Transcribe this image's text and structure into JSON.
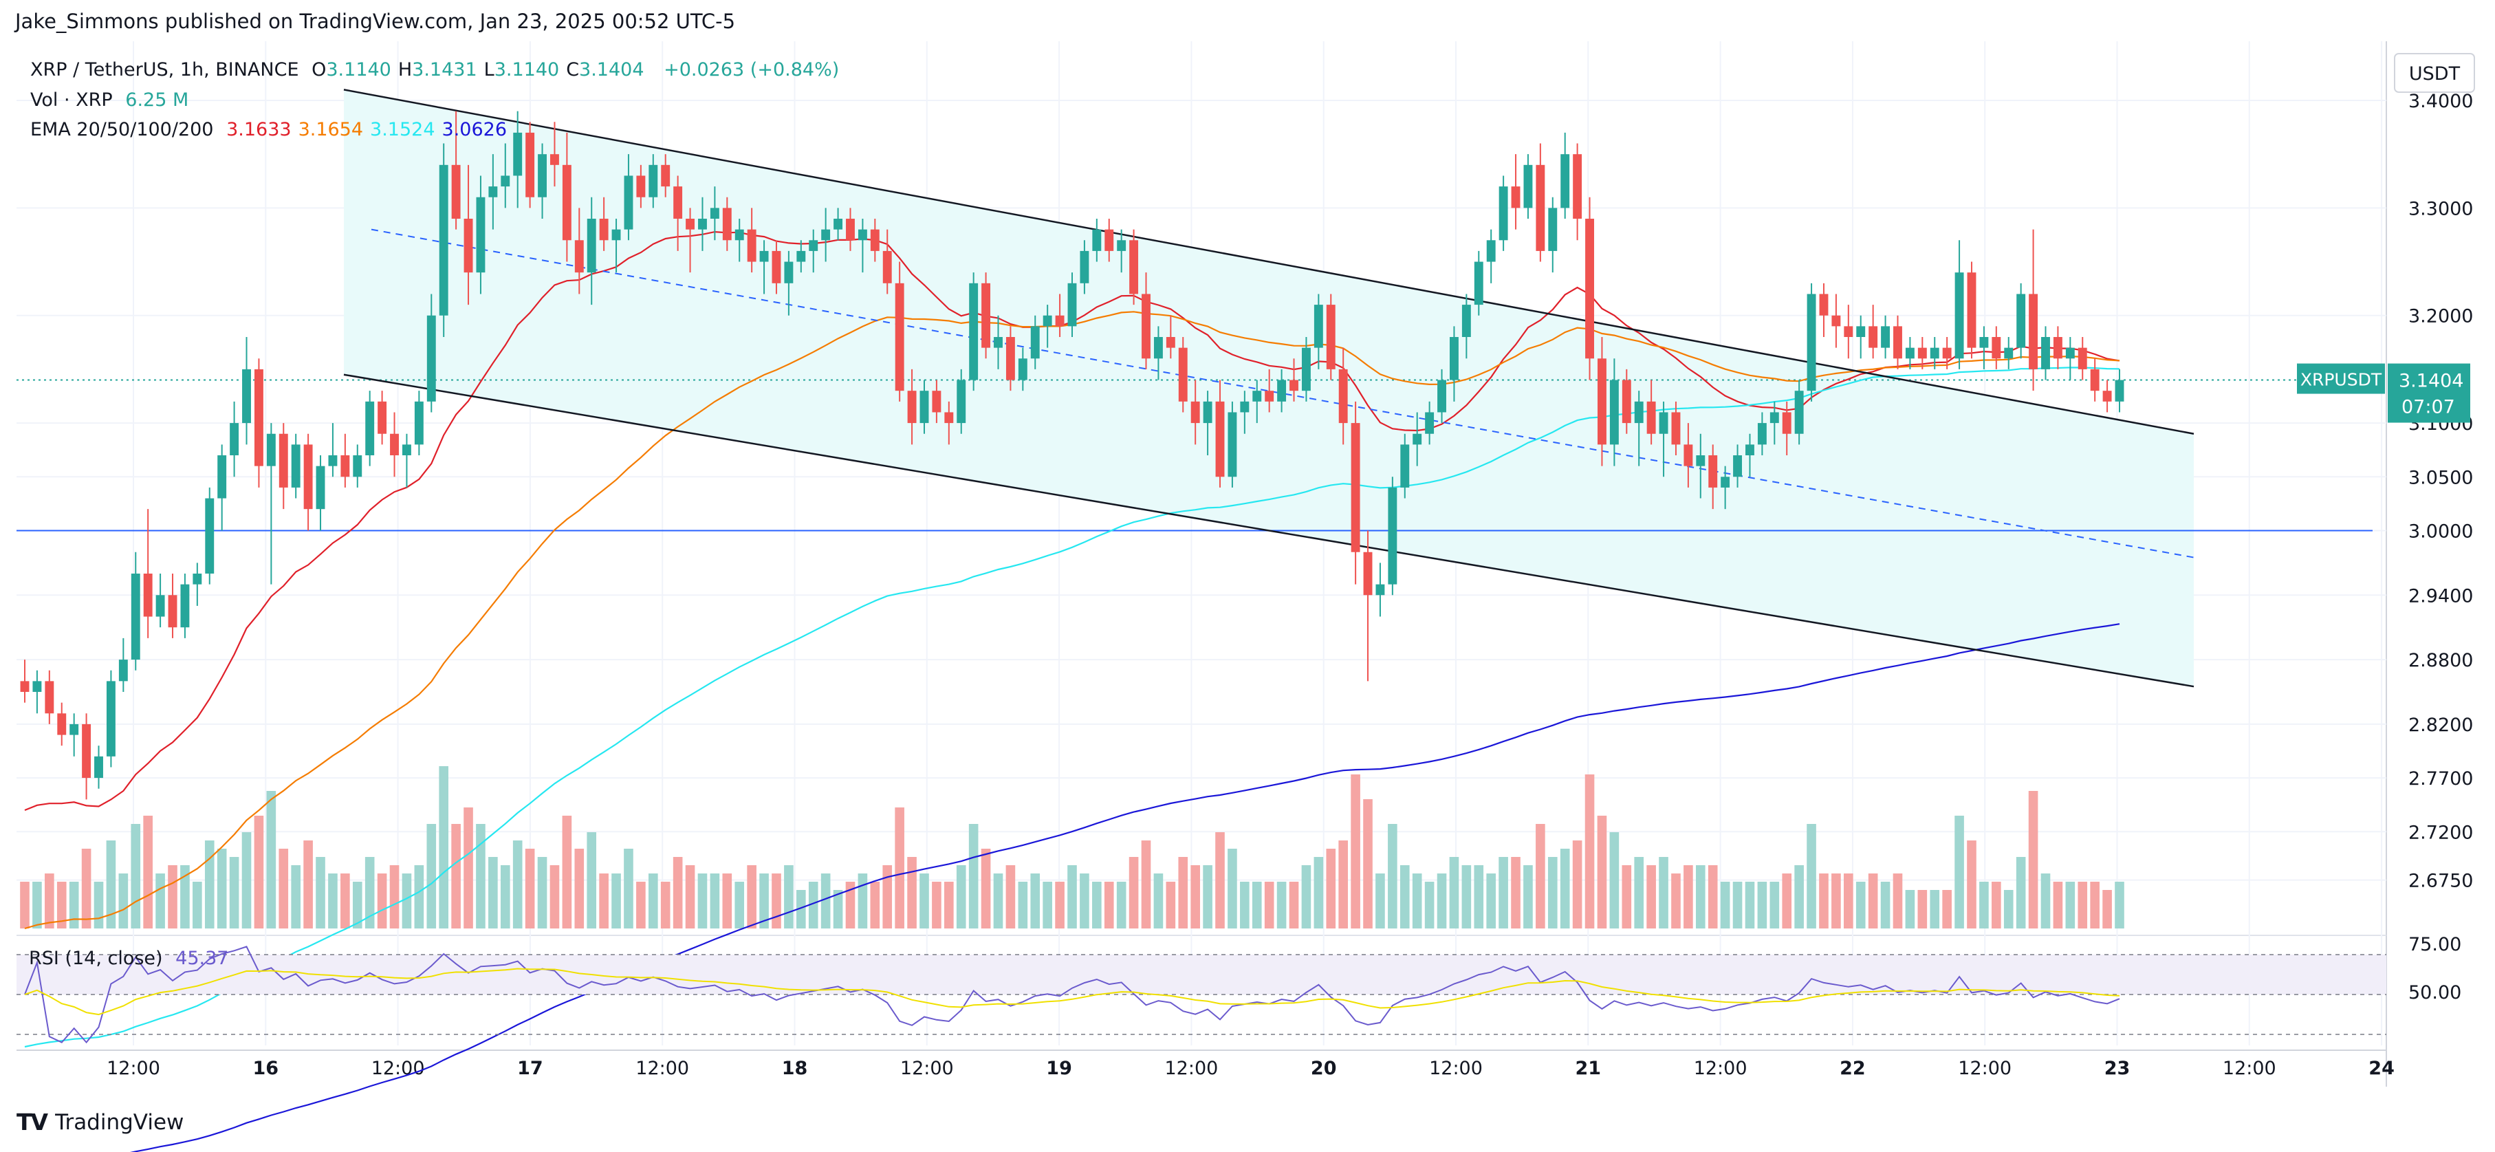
{
  "header": {
    "published_by": "Jake_Simmons published on TradingView.com, Jan 23, 2025 00:52 UTC-5"
  },
  "legend": {
    "symbol": "XRP / TetherUS, 1h, BINANCE",
    "ohlc": [
      {
        "k": "O",
        "v": "3.1140"
      },
      {
        "k": "H",
        "v": "3.1431"
      },
      {
        "k": "L",
        "v": "3.1140"
      },
      {
        "k": "C",
        "v": "3.1404"
      }
    ],
    "change": "+0.0263 (+0.84%)",
    "volume_label": "Vol · XRP",
    "volume_value": "6.25 M",
    "ema_label": "EMA 20/50/100/200",
    "ema_values": [
      {
        "v": "3.1633",
        "color": "#e0202a"
      },
      {
        "v": "3.1654",
        "color": "#f57c00"
      },
      {
        "v": "3.1524",
        "color": "#26e7f0"
      },
      {
        "v": "3.0626",
        "color": "#1a16d8"
      }
    ],
    "rsi_label": "RSI (14, close)",
    "rsi_value": "45.37"
  },
  "price_scale": {
    "currency_button": "USDT",
    "last_label": "XRPUSDT",
    "last_price": "3.1404",
    "countdown": "07:07"
  },
  "footer": {
    "brand": "TradingView",
    "logo": "TV"
  },
  "colors": {
    "up": "#26a69a",
    "down": "#ef5350",
    "channel_fill": "#e8fafa",
    "channel_line": "#131722",
    "mid_line": "#2962ff",
    "hline": "#2962ff",
    "rsi_line": "#6a5acd",
    "rsi_ma": "#f0e000",
    "rsi_band": "#f1eef9"
  },
  "chart_data": {
    "type": "candlestick",
    "symbol": "XRP / TetherUS",
    "timeframe": "1h",
    "exchange": "BINANCE",
    "price_range": [
      2.63,
      3.455
    ],
    "y_ticks": [
      "3.4000",
      "3.3000",
      "3.2000",
      "3.1000",
      "3.0500",
      "3.0000",
      "2.9400",
      "2.8800",
      "2.8200",
      "2.7700",
      "2.7200",
      "2.6750"
    ],
    "x_ticks": [
      "12:00",
      "16",
      "12:00",
      "17",
      "12:00",
      "18",
      "12:00",
      "19",
      "12:00",
      "20",
      "12:00",
      "21",
      "12:00",
      "22",
      "12:00",
      "23",
      "12:00",
      "24"
    ],
    "rsi_ticks": [
      "75.00",
      "50.00"
    ],
    "horizontal_line": 3.0,
    "channel": {
      "upper": {
        "from_price": 3.41,
        "to_price": 3.09
      },
      "lower": {
        "from_price": 3.145,
        "to_price": 2.855
      },
      "mid": {
        "from_price": 3.28,
        "to_price": 2.975
      }
    },
    "candles_ohlc": [
      [
        2.86,
        2.88,
        2.84,
        2.85
      ],
      [
        2.85,
        2.87,
        2.83,
        2.86
      ],
      [
        2.86,
        2.87,
        2.82,
        2.83
      ],
      [
        2.83,
        2.84,
        2.8,
        2.81
      ],
      [
        2.81,
        2.83,
        2.79,
        2.82
      ],
      [
        2.82,
        2.83,
        2.75,
        2.77
      ],
      [
        2.77,
        2.8,
        2.76,
        2.79
      ],
      [
        2.79,
        2.87,
        2.78,
        2.86
      ],
      [
        2.86,
        2.9,
        2.85,
        2.88
      ],
      [
        2.88,
        2.98,
        2.87,
        2.96
      ],
      [
        2.96,
        3.02,
        2.9,
        2.92
      ],
      [
        2.92,
        2.96,
        2.91,
        2.94
      ],
      [
        2.94,
        2.96,
        2.9,
        2.91
      ],
      [
        2.91,
        2.96,
        2.9,
        2.95
      ],
      [
        2.95,
        2.97,
        2.93,
        2.96
      ],
      [
        2.96,
        3.04,
        2.95,
        3.03
      ],
      [
        3.03,
        3.08,
        3.0,
        3.07
      ],
      [
        3.07,
        3.12,
        3.05,
        3.1
      ],
      [
        3.1,
        3.18,
        3.08,
        3.15
      ],
      [
        3.15,
        3.16,
        3.04,
        3.06
      ],
      [
        3.06,
        3.1,
        2.95,
        3.09
      ],
      [
        3.09,
        3.1,
        3.02,
        3.04
      ],
      [
        3.04,
        3.09,
        3.03,
        3.08
      ],
      [
        3.08,
        3.09,
        3.0,
        3.02
      ],
      [
        3.02,
        3.07,
        3.0,
        3.06
      ],
      [
        3.06,
        3.1,
        3.05,
        3.07
      ],
      [
        3.07,
        3.09,
        3.04,
        3.05
      ],
      [
        3.05,
        3.08,
        3.04,
        3.07
      ],
      [
        3.07,
        3.13,
        3.06,
        3.12
      ],
      [
        3.12,
        3.13,
        3.08,
        3.09
      ],
      [
        3.09,
        3.11,
        3.05,
        3.07
      ],
      [
        3.07,
        3.09,
        3.04,
        3.08
      ],
      [
        3.08,
        3.13,
        3.07,
        3.12
      ],
      [
        3.12,
        3.22,
        3.11,
        3.2
      ],
      [
        3.2,
        3.36,
        3.18,
        3.34
      ],
      [
        3.34,
        3.39,
        3.28,
        3.29
      ],
      [
        3.29,
        3.34,
        3.21,
        3.24
      ],
      [
        3.24,
        3.33,
        3.22,
        3.31
      ],
      [
        3.31,
        3.35,
        3.28,
        3.32
      ],
      [
        3.32,
        3.36,
        3.3,
        3.33
      ],
      [
        3.33,
        3.39,
        3.3,
        3.37
      ],
      [
        3.37,
        3.38,
        3.3,
        3.31
      ],
      [
        3.31,
        3.36,
        3.29,
        3.35
      ],
      [
        3.35,
        3.38,
        3.32,
        3.34
      ],
      [
        3.34,
        3.37,
        3.25,
        3.27
      ],
      [
        3.27,
        3.3,
        3.22,
        3.24
      ],
      [
        3.24,
        3.31,
        3.21,
        3.29
      ],
      [
        3.29,
        3.31,
        3.26,
        3.27
      ],
      [
        3.27,
        3.29,
        3.24,
        3.28
      ],
      [
        3.28,
        3.35,
        3.27,
        3.33
      ],
      [
        3.33,
        3.34,
        3.3,
        3.31
      ],
      [
        3.31,
        3.35,
        3.3,
        3.34
      ],
      [
        3.34,
        3.35,
        3.31,
        3.32
      ],
      [
        3.32,
        3.33,
        3.26,
        3.29
      ],
      [
        3.29,
        3.3,
        3.24,
        3.28
      ],
      [
        3.28,
        3.31,
        3.26,
        3.29
      ],
      [
        3.29,
        3.32,
        3.27,
        3.3
      ],
      [
        3.3,
        3.31,
        3.26,
        3.27
      ],
      [
        3.27,
        3.29,
        3.25,
        3.28
      ],
      [
        3.28,
        3.3,
        3.24,
        3.25
      ],
      [
        3.25,
        3.27,
        3.22,
        3.26
      ],
      [
        3.26,
        3.27,
        3.22,
        3.23
      ],
      [
        3.23,
        3.26,
        3.2,
        3.25
      ],
      [
        3.25,
        3.27,
        3.24,
        3.26
      ],
      [
        3.26,
        3.28,
        3.24,
        3.27
      ],
      [
        3.27,
        3.3,
        3.25,
        3.28
      ],
      [
        3.28,
        3.3,
        3.27,
        3.29
      ],
      [
        3.29,
        3.3,
        3.26,
        3.27
      ],
      [
        3.27,
        3.29,
        3.24,
        3.28
      ],
      [
        3.28,
        3.29,
        3.25,
        3.26
      ],
      [
        3.26,
        3.28,
        3.22,
        3.23
      ],
      [
        3.23,
        3.25,
        3.12,
        3.13
      ],
      [
        3.13,
        3.15,
        3.08,
        3.1
      ],
      [
        3.1,
        3.14,
        3.09,
        3.13
      ],
      [
        3.13,
        3.14,
        3.1,
        3.11
      ],
      [
        3.11,
        3.12,
        3.08,
        3.1
      ],
      [
        3.1,
        3.15,
        3.09,
        3.14
      ],
      [
        3.14,
        3.24,
        3.13,
        3.23
      ],
      [
        3.23,
        3.24,
        3.16,
        3.17
      ],
      [
        3.17,
        3.2,
        3.15,
        3.18
      ],
      [
        3.18,
        3.19,
        3.13,
        3.14
      ],
      [
        3.14,
        3.17,
        3.13,
        3.16
      ],
      [
        3.16,
        3.2,
        3.15,
        3.19
      ],
      [
        3.19,
        3.21,
        3.17,
        3.2
      ],
      [
        3.2,
        3.22,
        3.18,
        3.19
      ],
      [
        3.19,
        3.24,
        3.18,
        3.23
      ],
      [
        3.23,
        3.27,
        3.22,
        3.26
      ],
      [
        3.26,
        3.29,
        3.25,
        3.28
      ],
      [
        3.28,
        3.29,
        3.25,
        3.26
      ],
      [
        3.26,
        3.28,
        3.24,
        3.27
      ],
      [
        3.27,
        3.28,
        3.21,
        3.22
      ],
      [
        3.22,
        3.24,
        3.15,
        3.16
      ],
      [
        3.16,
        3.19,
        3.14,
        3.18
      ],
      [
        3.18,
        3.2,
        3.16,
        3.17
      ],
      [
        3.17,
        3.18,
        3.11,
        3.12
      ],
      [
        3.12,
        3.14,
        3.08,
        3.1
      ],
      [
        3.1,
        3.13,
        3.07,
        3.12
      ],
      [
        3.12,
        3.14,
        3.04,
        3.05
      ],
      [
        3.05,
        3.12,
        3.04,
        3.11
      ],
      [
        3.11,
        3.13,
        3.09,
        3.12
      ],
      [
        3.12,
        3.14,
        3.1,
        3.13
      ],
      [
        3.13,
        3.15,
        3.11,
        3.12
      ],
      [
        3.12,
        3.15,
        3.11,
        3.14
      ],
      [
        3.14,
        3.16,
        3.12,
        3.13
      ],
      [
        3.13,
        3.18,
        3.12,
        3.17
      ],
      [
        3.17,
        3.22,
        3.15,
        3.21
      ],
      [
        3.21,
        3.22,
        3.14,
        3.15
      ],
      [
        3.15,
        3.17,
        3.08,
        3.1
      ],
      [
        3.1,
        3.12,
        2.95,
        2.98
      ],
      [
        2.98,
        3.0,
        2.86,
        2.94
      ],
      [
        2.94,
        2.97,
        2.92,
        2.95
      ],
      [
        2.95,
        3.05,
        2.94,
        3.04
      ],
      [
        3.04,
        3.09,
        3.03,
        3.08
      ],
      [
        3.08,
        3.11,
        3.06,
        3.09
      ],
      [
        3.09,
        3.12,
        3.08,
        3.11
      ],
      [
        3.11,
        3.15,
        3.1,
        3.14
      ],
      [
        3.14,
        3.19,
        3.12,
        3.18
      ],
      [
        3.18,
        3.22,
        3.16,
        3.21
      ],
      [
        3.21,
        3.26,
        3.2,
        3.25
      ],
      [
        3.25,
        3.28,
        3.23,
        3.27
      ],
      [
        3.27,
        3.33,
        3.26,
        3.32
      ],
      [
        3.32,
        3.35,
        3.28,
        3.3
      ],
      [
        3.3,
        3.35,
        3.29,
        3.34
      ],
      [
        3.34,
        3.36,
        3.25,
        3.26
      ],
      [
        3.26,
        3.31,
        3.24,
        3.3
      ],
      [
        3.3,
        3.37,
        3.29,
        3.35
      ],
      [
        3.35,
        3.36,
        3.27,
        3.29
      ],
      [
        3.29,
        3.31,
        3.14,
        3.16
      ],
      [
        3.16,
        3.18,
        3.06,
        3.08
      ],
      [
        3.08,
        3.16,
        3.06,
        3.14
      ],
      [
        3.14,
        3.15,
        3.09,
        3.1
      ],
      [
        3.1,
        3.13,
        3.06,
        3.12
      ],
      [
        3.12,
        3.14,
        3.08,
        3.09
      ],
      [
        3.09,
        3.12,
        3.05,
        3.11
      ],
      [
        3.11,
        3.12,
        3.07,
        3.08
      ],
      [
        3.08,
        3.1,
        3.04,
        3.06
      ],
      [
        3.06,
        3.09,
        3.03,
        3.07
      ],
      [
        3.07,
        3.08,
        3.02,
        3.04
      ],
      [
        3.04,
        3.06,
        3.02,
        3.05
      ],
      [
        3.05,
        3.08,
        3.04,
        3.07
      ],
      [
        3.07,
        3.09,
        3.05,
        3.08
      ],
      [
        3.08,
        3.11,
        3.07,
        3.1
      ],
      [
        3.1,
        3.12,
        3.08,
        3.11
      ],
      [
        3.11,
        3.12,
        3.07,
        3.09
      ],
      [
        3.09,
        3.14,
        3.08,
        3.13
      ],
      [
        3.13,
        3.23,
        3.12,
        3.22
      ],
      [
        3.22,
        3.23,
        3.18,
        3.2
      ],
      [
        3.2,
        3.22,
        3.17,
        3.19
      ],
      [
        3.19,
        3.21,
        3.16,
        3.18
      ],
      [
        3.18,
        3.2,
        3.16,
        3.19
      ],
      [
        3.19,
        3.21,
        3.16,
        3.17
      ],
      [
        3.17,
        3.2,
        3.16,
        3.19
      ],
      [
        3.19,
        3.2,
        3.15,
        3.16
      ],
      [
        3.16,
        3.18,
        3.15,
        3.17
      ],
      [
        3.17,
        3.18,
        3.15,
        3.16
      ],
      [
        3.16,
        3.18,
        3.15,
        3.17
      ],
      [
        3.17,
        3.18,
        3.15,
        3.16
      ],
      [
        3.16,
        3.27,
        3.15,
        3.24
      ],
      [
        3.24,
        3.25,
        3.16,
        3.17
      ],
      [
        3.17,
        3.19,
        3.15,
        3.18
      ],
      [
        3.18,
        3.19,
        3.15,
        3.16
      ],
      [
        3.16,
        3.18,
        3.15,
        3.17
      ],
      [
        3.17,
        3.23,
        3.16,
        3.22
      ],
      [
        3.22,
        3.28,
        3.13,
        3.15
      ],
      [
        3.15,
        3.19,
        3.14,
        3.18
      ],
      [
        3.18,
        3.19,
        3.15,
        3.16
      ],
      [
        3.16,
        3.18,
        3.14,
        3.17
      ],
      [
        3.17,
        3.18,
        3.14,
        3.15
      ],
      [
        3.15,
        3.16,
        3.12,
        3.13
      ],
      [
        3.13,
        3.14,
        3.11,
        3.12
      ],
      [
        3.12,
        3.15,
        3.11,
        3.14
      ]
    ],
    "volume_label": "Vol · XRP",
    "ema_periods": [
      20,
      50,
      100,
      200
    ],
    "rsi_period": 14
  }
}
